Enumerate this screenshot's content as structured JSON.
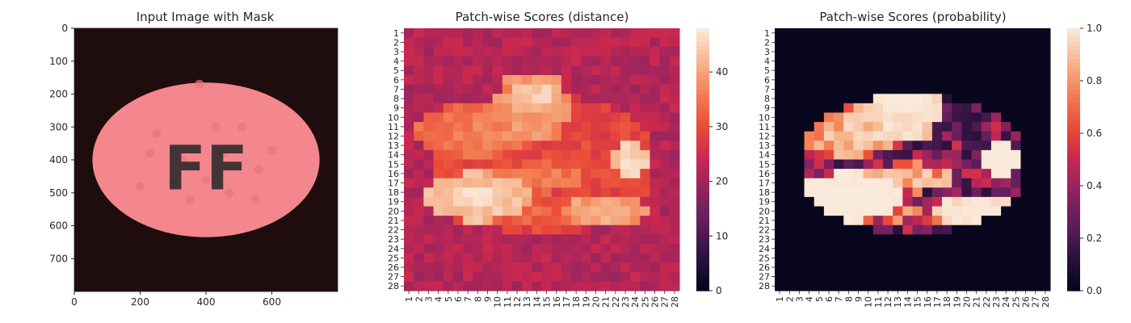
{
  "chart_data": [
    {
      "type": "image",
      "title": "Input Image with Mask",
      "xticks": [
        "0",
        "200",
        "400",
        "600"
      ],
      "xtick_values": [
        0,
        200,
        400,
        600
      ],
      "yticks": [
        "0",
        "100",
        "200",
        "300",
        "400",
        "500",
        "600",
        "700"
      ],
      "ytick_values": [
        0,
        100,
        200,
        300,
        400,
        500,
        600,
        700
      ],
      "xlim": [
        0,
        800
      ],
      "ylim": [
        0,
        800
      ],
      "image": {
        "background": "#1f0c0c",
        "pill": {
          "cx": 400,
          "cy": 400,
          "rx": 345,
          "ry": 235,
          "color": "#f3878d"
        },
        "embossed_text": "FF"
      },
      "colors": {
        "background": "#1f0c0c",
        "pill": "#f3878d"
      }
    },
    {
      "type": "heatmap",
      "title": "Patch-wise Scores (distance)",
      "rows": 28,
      "cols": 28,
      "xticks": [
        "1",
        "2",
        "3",
        "4",
        "5",
        "6",
        "7",
        "8",
        "9",
        "10",
        "11",
        "12",
        "13",
        "14",
        "15",
        "16",
        "17",
        "18",
        "19",
        "20",
        "21",
        "22",
        "23",
        "24",
        "25",
        "26",
        "27",
        "28"
      ],
      "yticks": [
        "1",
        "2",
        "3",
        "4",
        "5",
        "6",
        "7",
        "8",
        "9",
        "10",
        "11",
        "12",
        "13",
        "14",
        "15",
        "16",
        "17",
        "18",
        "19",
        "20",
        "21",
        "22",
        "23",
        "24",
        "25",
        "26",
        "27",
        "28"
      ],
      "colorbar": {
        "min": 0,
        "max": 48,
        "ticks": [
          "0",
          "10",
          "20",
          "30",
          "40"
        ],
        "tick_values": [
          0,
          10,
          20,
          30,
          40
        ]
      },
      "colormap": "rocket",
      "baseline": 22,
      "ellipse_level": 29,
      "regions": [
        {
          "cx": 7.5,
          "cy": 11.5,
          "rx": 6,
          "ry": 3,
          "v": 36
        },
        {
          "cx": 8.0,
          "cy": 18.5,
          "rx": 5.5,
          "ry": 2.6,
          "v": 45
        },
        {
          "cx": 13.5,
          "cy": 9,
          "rx": 4,
          "ry": 4,
          "v": 40
        },
        {
          "cx": 14.0,
          "cy": 7.5,
          "rx": 2.5,
          "ry": 1.3,
          "v": 45
        },
        {
          "cx": 21.0,
          "cy": 20,
          "rx": 4.5,
          "ry": 2,
          "v": 41
        },
        {
          "cx": 23.5,
          "cy": 14.5,
          "rx": 2,
          "ry": 2,
          "v": 46
        },
        {
          "cx": 14.0,
          "cy": 16.5,
          "rx": 5,
          "ry": 1.6,
          "v": 36
        },
        {
          "cx": 12.5,
          "cy": 20.5,
          "rx": 8,
          "ry": 1.4,
          "v": 33
        }
      ]
    },
    {
      "type": "heatmap",
      "title": "Patch-wise Scores (probability)",
      "rows": 28,
      "cols": 28,
      "xticks": [
        "1",
        "2",
        "3",
        "4",
        "5",
        "6",
        "7",
        "8",
        "9",
        "10",
        "11",
        "12",
        "13",
        "14",
        "15",
        "16",
        "17",
        "18",
        "19",
        "20",
        "21",
        "22",
        "23",
        "24",
        "25",
        "26",
        "27",
        "28"
      ],
      "yticks": [
        "1",
        "2",
        "3",
        "4",
        "5",
        "6",
        "7",
        "8",
        "9",
        "10",
        "11",
        "12",
        "13",
        "14",
        "15",
        "16",
        "17",
        "18",
        "19",
        "20",
        "21",
        "22",
        "23",
        "24",
        "25",
        "26",
        "27",
        "28"
      ],
      "colorbar": {
        "min": 0,
        "max": 1,
        "ticks": [
          "0.0",
          "0.2",
          "0.4",
          "0.6",
          "0.8",
          "1.0"
        ],
        "tick_values": [
          0,
          0.2,
          0.4,
          0.6,
          0.8,
          1.0
        ]
      },
      "colormap": "rocket",
      "transform": {
        "type": "logistic",
        "source_index": 1,
        "center": 31,
        "scale": 2.2,
        "outside": 0.015
      }
    }
  ]
}
